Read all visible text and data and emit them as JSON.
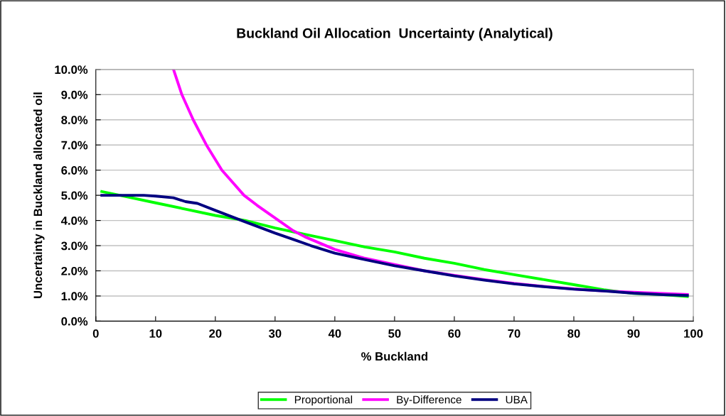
{
  "chart_data": {
    "type": "line",
    "title": "Buckland Oil Allocation  Uncertainty (Analytical)",
    "xlabel": "% Buckland",
    "ylabel": "Uncertainty in Buckland allocated oil",
    "series": [
      {
        "name": "Proportional",
        "color": "#00ff00",
        "x": [
          1,
          5,
          10,
          15,
          20,
          25,
          30,
          35,
          40,
          45,
          50,
          55,
          60,
          65,
          70,
          75,
          80,
          85,
          90,
          95,
          99
        ],
        "values": [
          5.15,
          4.95,
          4.7,
          4.45,
          4.2,
          4.0,
          3.7,
          3.45,
          3.2,
          2.95,
          2.75,
          2.5,
          2.3,
          2.05,
          1.85,
          1.65,
          1.45,
          1.25,
          1.1,
          1.05,
          0.98
        ]
      },
      {
        "name": "By-Difference",
        "color": "#ff00ff",
        "x": [
          13,
          14.4,
          16.3,
          18.5,
          21.1,
          24.8,
          27,
          30.6,
          33,
          35,
          40,
          45,
          50,
          55,
          60,
          65,
          70,
          75,
          80,
          85,
          90,
          95,
          99
        ],
        "values": [
          10,
          9,
          8,
          7,
          6,
          5,
          4.6,
          4,
          3.6,
          3.35,
          2.85,
          2.5,
          2.25,
          2.0,
          1.82,
          1.65,
          1.5,
          1.38,
          1.28,
          1.2,
          1.15,
          1.1,
          1.06
        ]
      },
      {
        "name": "UBA",
        "color": "#000080",
        "x": [
          1,
          5,
          8,
          10,
          13,
          15,
          17,
          20,
          24.4,
          30,
          33,
          36,
          40,
          45,
          50,
          55,
          60,
          65,
          70,
          75,
          80,
          85,
          90,
          95,
          99
        ],
        "values": [
          5.0,
          5.0,
          5.0,
          4.97,
          4.9,
          4.75,
          4.68,
          4.4,
          4.0,
          3.5,
          3.25,
          3.0,
          2.7,
          2.45,
          2.2,
          2.0,
          1.8,
          1.63,
          1.48,
          1.37,
          1.27,
          1.2,
          1.11,
          1.05,
          1.02
        ]
      }
    ],
    "xlim": [
      0,
      100
    ],
    "xticks": [
      0,
      10,
      20,
      30,
      40,
      50,
      60,
      70,
      80,
      90,
      100
    ],
    "ylim": [
      0,
      10
    ],
    "yticks": [
      {
        "value": 0,
        "label": "0.0%"
      },
      {
        "value": 1,
        "label": "1.0%"
      },
      {
        "value": 2,
        "label": "2.0%"
      },
      {
        "value": 3,
        "label": "3.0%"
      },
      {
        "value": 4,
        "label": "4.0%"
      },
      {
        "value": 5,
        "label": "5.0%"
      },
      {
        "value": 6,
        "label": "6.0%"
      },
      {
        "value": 7,
        "label": "7.0%"
      },
      {
        "value": 8,
        "label": "8.0%"
      },
      {
        "value": 9,
        "label": "9.0%"
      },
      {
        "value": 10,
        "label": "10.0%"
      }
    ],
    "grid": "y",
    "legend": "bottom",
    "marker": "none",
    "line_style": "solid"
  }
}
